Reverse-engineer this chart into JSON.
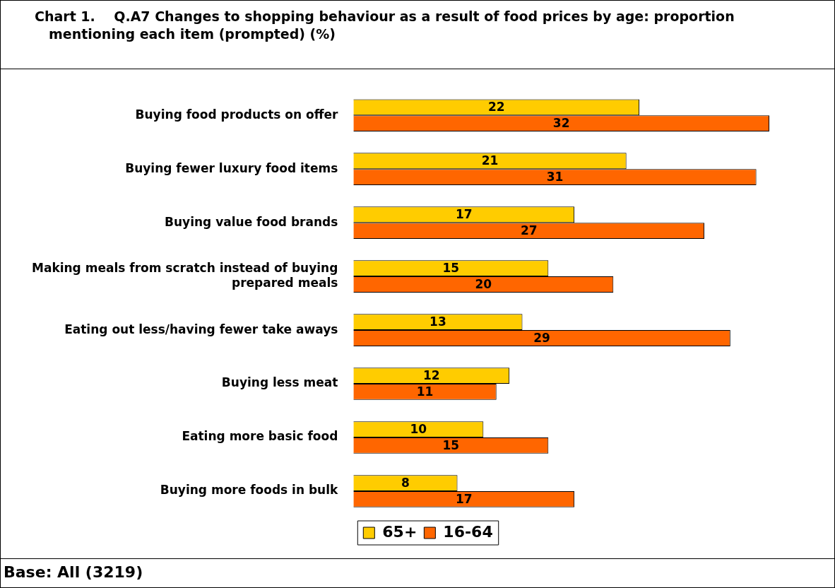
{
  "chart_data": {
    "type": "bar",
    "orientation": "horizontal",
    "title": "Chart 1.    Q.A7 Changes to shopping behaviour as a result of food prices by age: proportion mentioning each item (prompted) (%)",
    "categories": [
      "Buying food products on offer",
      "Buying fewer luxury food items",
      "Buying value food brands",
      "Making meals from scratch instead of buying prepared meals",
      "Eating out less/having fewer take aways",
      "Buying less meat",
      "Eating more basic food",
      "Buying more foods in bulk"
    ],
    "series": [
      {
        "name": "65+",
        "color": "#ffcc00",
        "values": [
          22,
          21,
          17,
          15,
          13,
          12,
          10,
          8
        ]
      },
      {
        "name": "16-64",
        "color": "#ff6600",
        "values": [
          32,
          31,
          27,
          20,
          29,
          11,
          15,
          17
        ]
      }
    ],
    "xlim": [
      0,
      37
    ],
    "data_labels": true,
    "grid": false,
    "legend": "bottom",
    "annotations": [
      "Base: All (3219)"
    ]
  }
}
